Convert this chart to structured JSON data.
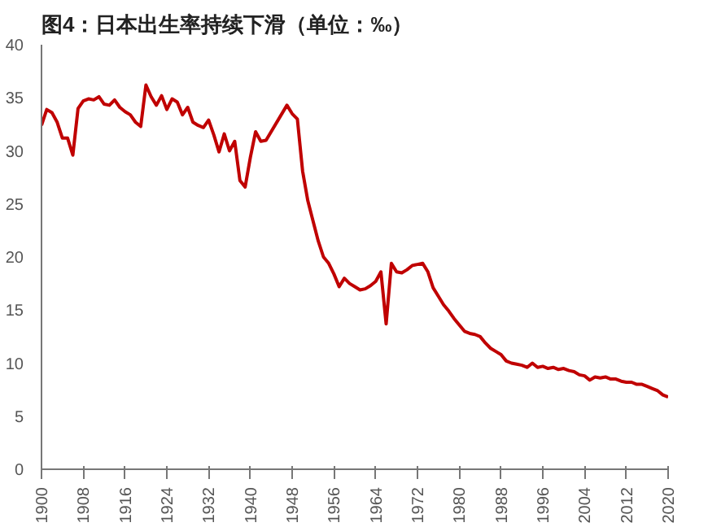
{
  "chart_data": {
    "type": "line",
    "title": "图4：日本出生率持续下滑（单位：‰）",
    "x": [
      1900,
      1901,
      1902,
      1903,
      1904,
      1905,
      1906,
      1907,
      1908,
      1909,
      1910,
      1911,
      1912,
      1913,
      1914,
      1915,
      1916,
      1917,
      1918,
      1919,
      1920,
      1921,
      1922,
      1923,
      1924,
      1925,
      1926,
      1927,
      1928,
      1929,
      1930,
      1931,
      1932,
      1933,
      1934,
      1935,
      1936,
      1937,
      1938,
      1939,
      1940,
      1941,
      1942,
      1943,
      1947,
      1948,
      1949,
      1950,
      1951,
      1952,
      1953,
      1954,
      1955,
      1956,
      1957,
      1958,
      1959,
      1960,
      1961,
      1962,
      1963,
      1964,
      1965,
      1966,
      1967,
      1968,
      1969,
      1970,
      1971,
      1972,
      1973,
      1974,
      1975,
      1976,
      1977,
      1978,
      1979,
      1980,
      1981,
      1982,
      1983,
      1984,
      1985,
      1986,
      1987,
      1988,
      1989,
      1990,
      1991,
      1992,
      1993,
      1994,
      1995,
      1996,
      1997,
      1998,
      1999,
      2000,
      2001,
      2002,
      2003,
      2004,
      2005,
      2006,
      2007,
      2008,
      2009,
      2010,
      2011,
      2012,
      2013,
      2014,
      2015,
      2016,
      2017,
      2018,
      2019,
      2020
    ],
    "series": [
      {
        "color": "#c00000",
        "values": [
          32.4,
          33.9,
          33.6,
          32.7,
          31.2,
          31.2,
          29.6,
          34.0,
          34.7,
          34.9,
          34.8,
          35.1,
          34.4,
          34.3,
          34.8,
          34.1,
          33.7,
          33.4,
          32.7,
          32.3,
          36.2,
          35.1,
          34.3,
          35.2,
          33.9,
          34.9,
          34.6,
          33.4,
          34.1,
          32.7,
          32.4,
          32.2,
          32.9,
          31.5,
          29.9,
          31.6,
          30.0,
          30.9,
          27.2,
          26.6,
          29.4,
          31.8,
          30.9,
          31.0,
          34.3,
          33.5,
          33.0,
          28.1,
          25.3,
          23.4,
          21.5,
          20.0,
          19.4,
          18.4,
          17.2,
          18.0,
          17.5,
          17.2,
          16.9,
          17.0,
          17.3,
          17.7,
          18.6,
          13.7,
          19.4,
          18.6,
          18.5,
          18.8,
          19.2,
          19.3,
          19.4,
          18.6,
          17.1,
          16.3,
          15.5,
          14.9,
          14.2,
          13.6,
          13.0,
          12.8,
          12.7,
          12.5,
          11.9,
          11.4,
          11.1,
          10.8,
          10.2,
          10.0,
          9.9,
          9.8,
          9.6,
          10.0,
          9.6,
          9.7,
          9.5,
          9.6,
          9.4,
          9.5,
          9.3,
          9.2,
          8.9,
          8.8,
          8.4,
          8.7,
          8.6,
          8.7,
          8.5,
          8.5,
          8.3,
          8.2,
          8.2,
          8.0,
          8.0,
          7.8,
          7.6,
          7.4,
          7.0,
          6.8
        ]
      }
    ],
    "xlim": [
      1900,
      2020
    ],
    "xticks": [
      1900,
      1908,
      1916,
      1924,
      1932,
      1940,
      1948,
      1956,
      1964,
      1972,
      1980,
      1988,
      1996,
      2004,
      2012,
      2020
    ],
    "ylim": [
      0,
      40
    ],
    "yticks": [
      0,
      5,
      10,
      15,
      20,
      25,
      30,
      35,
      40
    ],
    "grid": false,
    "marker": "none",
    "line_style": "solid"
  }
}
